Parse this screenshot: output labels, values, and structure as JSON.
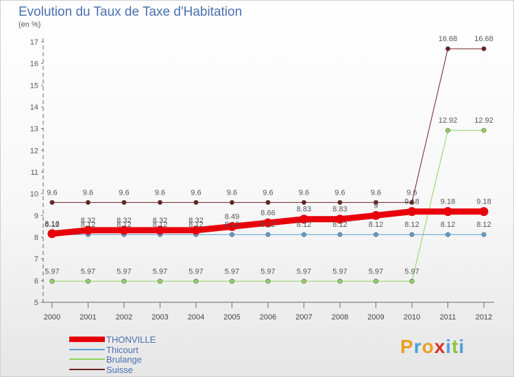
{
  "header": {
    "title": "Evolution du Taux de Taxe d'Habitation",
    "unit": "(en %)"
  },
  "legend": {
    "items": [
      {
        "label": "THONVILLE",
        "color": "#e8000b"
      },
      {
        "label": "Thicourt",
        "color": "#5a9fd4"
      },
      {
        "label": "Brulange",
        "color": "#8fd45a"
      },
      {
        "label": "Suisse",
        "color": "#6e1f22"
      }
    ]
  },
  "logo": {
    "letters": [
      "P",
      "r",
      "o",
      "x",
      "i",
      "t",
      "i"
    ]
  },
  "chart_data": {
    "type": "line",
    "title": "Evolution du Taux de Taxe d'Habitation",
    "ylabel": "(en %)",
    "xlabel": "",
    "x": [
      "2000",
      "2001",
      "2002",
      "2003",
      "2004",
      "2005",
      "2006",
      "2007",
      "2008",
      "2009",
      "2010",
      "2011",
      "2012"
    ],
    "yticks": [
      "5",
      "6",
      "7",
      "8",
      "9",
      "10",
      "11",
      "12",
      "13",
      "14",
      "15",
      "16",
      "17"
    ],
    "ylim": [
      5,
      17
    ],
    "grid": false,
    "legend_position": "bottom-left",
    "series": [
      {
        "name": "THONVILLE",
        "color": "#e8000b",
        "values": [
          8.16,
          8.32,
          8.32,
          8.32,
          8.32,
          8.49,
          8.66,
          8.83,
          8.83,
          9,
          9.18,
          9.18,
          9.18
        ],
        "labels": [
          "8.16",
          "8.32",
          "8.32",
          "8.32",
          "8.32",
          "8.49",
          "8.66",
          "8.83",
          "8.83",
          "9",
          "9.18",
          "9.18",
          "9.18"
        ]
      },
      {
        "name": "Thicourt",
        "color": "#5a9fd4",
        "values": [
          8.12,
          8.12,
          8.12,
          8.12,
          8.12,
          8.12,
          8.12,
          8.12,
          8.12,
          8.12,
          8.12,
          8.12,
          8.12
        ],
        "labels": [
          "8.12",
          "8.12",
          "8.12",
          "8.12",
          "8.12",
          "8.12",
          "8.12",
          "8.12",
          "8.12",
          "8.12",
          "8.12",
          "8.12",
          "8.12"
        ]
      },
      {
        "name": "Brulange",
        "color": "#8fd45a",
        "values": [
          5.97,
          5.97,
          5.97,
          5.97,
          5.97,
          5.97,
          5.97,
          5.97,
          5.97,
          5.97,
          5.97,
          12.92,
          12.92
        ],
        "labels": [
          "5.97",
          "5.97",
          "5.97",
          "5.97",
          "5.97",
          "5.97",
          "5.97",
          "5.97",
          "5.97",
          "5.97",
          "5.97",
          "12.92",
          "12.92"
        ]
      },
      {
        "name": "Suisse",
        "color": "#6e1f22",
        "values": [
          9.6,
          9.6,
          9.6,
          9.6,
          9.6,
          9.6,
          9.6,
          9.6,
          9.6,
          9.6,
          9.6,
          16.68,
          16.68
        ],
        "labels": [
          "9.6",
          "9.6",
          "9.6",
          "9.6",
          "9.6",
          "9.6",
          "9.6",
          "9.6",
          "9.6",
          "9.6",
          "9.6",
          "16.68",
          "16.68"
        ]
      }
    ]
  }
}
